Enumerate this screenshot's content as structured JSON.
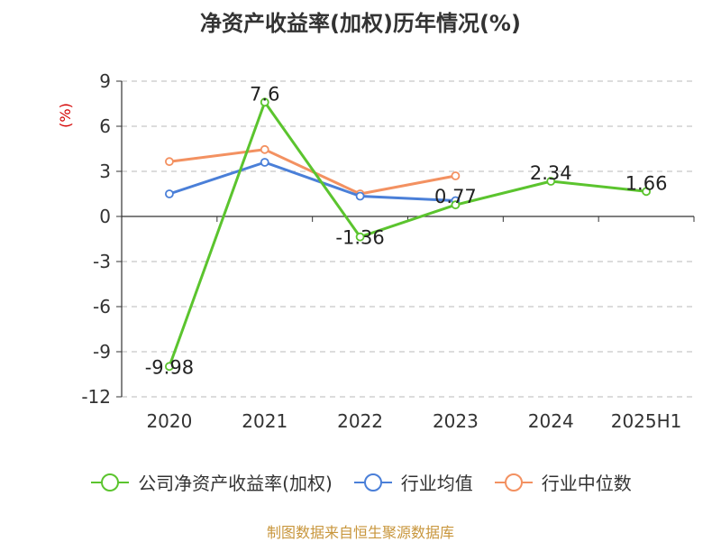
{
  "chart_data": {
    "type": "line",
    "title": "净资产收益率(加权)历年情况(%)",
    "ylabel": "(%)",
    "xlabel": "",
    "categories": [
      "2020",
      "2021",
      "2022",
      "2023",
      "2024",
      "2025H1"
    ],
    "ylim": [
      -12,
      9
    ],
    "yticks": [
      "9",
      "6",
      "3",
      "0",
      "-3",
      "-6",
      "-9",
      "-12"
    ],
    "grid": true,
    "legend_position": "bottom",
    "series": [
      {
        "name": "公司净资产收益率(加权)",
        "color": "#5bc42e",
        "values": [
          -9.98,
          7.6,
          -1.36,
          0.77,
          2.34,
          1.66
        ],
        "labels": [
          "-9.98",
          "7.6",
          "-1.36",
          "0.77",
          "2.34",
          "1.66"
        ]
      },
      {
        "name": "行业均值",
        "color": "#4a7fd8",
        "values": [
          1.5,
          3.6,
          1.35,
          1.05,
          null,
          null
        ]
      },
      {
        "name": "行业中位数",
        "color": "#f39161",
        "values": [
          3.65,
          4.45,
          1.5,
          2.7,
          null,
          null
        ]
      }
    ],
    "source": "制图数据来自恒生聚源数据库"
  }
}
